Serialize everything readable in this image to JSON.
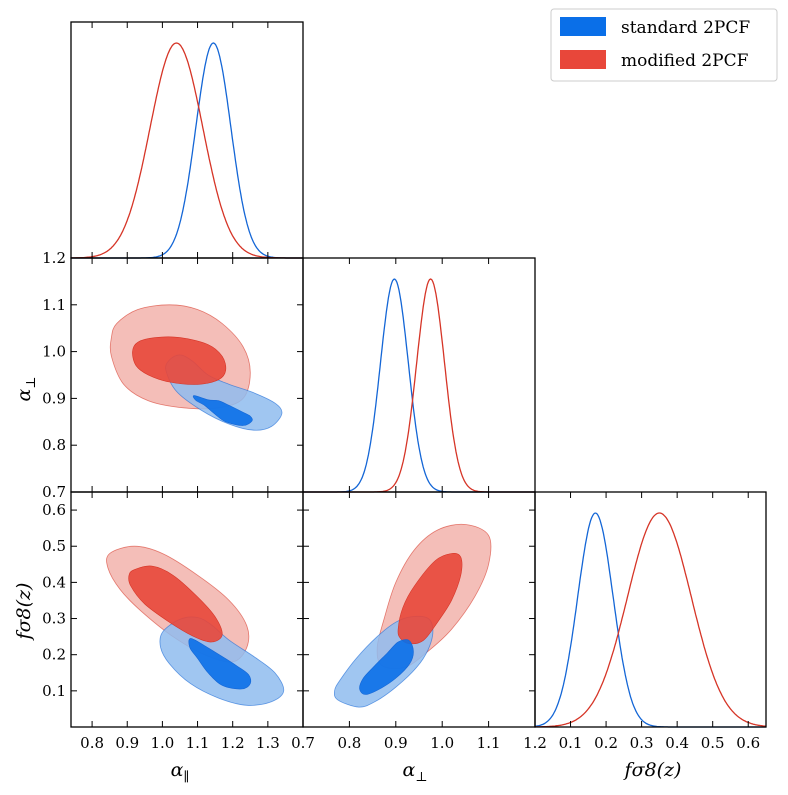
{
  "chart_data": {
    "type": "corner",
    "title": "",
    "series": [
      {
        "name": "standard 2PCF",
        "color_line": "#1466d6",
        "color_1sigma": "#0a6fe8",
        "color_2sigma": "#8fbcef",
        "mean": {
          "alpha_par": 1.145,
          "alpha_perp": 0.897,
          "fs8": 0.17
        },
        "sigma": {
          "alpha_par": 0.05,
          "alpha_perp": 0.03,
          "fs8": 0.05
        },
        "contour_1sigma": {
          "alpha_par_alpha_perp": [
            [
              1.09,
              0.906
            ],
            [
              1.13,
              0.897
            ],
            [
              1.16,
              0.895
            ],
            [
              1.19,
              0.885
            ],
            [
              1.23,
              0.87
            ],
            [
              1.25,
              0.862
            ],
            [
              1.255,
              0.852
            ],
            [
              1.23,
              0.842
            ],
            [
              1.18,
              0.85
            ],
            [
              1.15,
              0.866
            ],
            [
              1.12,
              0.885
            ],
            [
              1.095,
              0.896
            ]
          ],
          "alpha_par_fs8": [
            [
              1.08,
              0.245
            ],
            [
              1.12,
              0.225
            ],
            [
              1.17,
              0.195
            ],
            [
              1.21,
              0.17
            ],
            [
              1.245,
              0.145
            ],
            [
              1.25,
              0.12
            ],
            [
              1.225,
              0.105
            ],
            [
              1.17,
              0.115
            ],
            [
              1.13,
              0.15
            ],
            [
              1.1,
              0.19
            ],
            [
              1.078,
              0.22
            ]
          ],
          "alpha_perp_fs8": [
            [
              0.835,
              0.09
            ],
            [
              0.865,
              0.105
            ],
            [
              0.9,
              0.135
            ],
            [
              0.93,
              0.175
            ],
            [
              0.938,
              0.21
            ],
            [
              0.928,
              0.24
            ],
            [
              0.905,
              0.235
            ],
            [
              0.882,
              0.205
            ],
            [
              0.855,
              0.17
            ],
            [
              0.83,
              0.135
            ],
            [
              0.822,
              0.105
            ]
          ]
        },
        "contour_2sigma": {
          "alpha_par_alpha_perp": [
            [
              1.02,
              0.982
            ],
            [
              1.05,
              0.993
            ],
            [
              1.085,
              0.98
            ],
            [
              1.13,
              0.95
            ],
            [
              1.19,
              0.93
            ],
            [
              1.26,
              0.912
            ],
            [
              1.32,
              0.89
            ],
            [
              1.34,
              0.868
            ],
            [
              1.31,
              0.84
            ],
            [
              1.26,
              0.832
            ],
            [
              1.19,
              0.845
            ],
            [
              1.11,
              0.875
            ],
            [
              1.04,
              0.915
            ],
            [
              1.01,
              0.96
            ]
          ],
          "alpha_par_fs8": [
            [
              1.0,
              0.262
            ],
            [
              1.05,
              0.298
            ],
            [
              1.1,
              0.303
            ],
            [
              1.14,
              0.282
            ],
            [
              1.19,
              0.24
            ],
            [
              1.26,
              0.195
            ],
            [
              1.32,
              0.15
            ],
            [
              1.345,
              0.1
            ],
            [
              1.31,
              0.07
            ],
            [
              1.24,
              0.06
            ],
            [
              1.16,
              0.08
            ],
            [
              1.08,
              0.12
            ],
            [
              1.02,
              0.175
            ],
            [
              0.995,
              0.22
            ]
          ],
          "alpha_perp_fs8": [
            [
              0.775,
              0.075
            ],
            [
              0.82,
              0.055
            ],
            [
              0.855,
              0.07
            ],
            [
              0.9,
              0.11
            ],
            [
              0.945,
              0.165
            ],
            [
              0.97,
              0.215
            ],
            [
              0.98,
              0.265
            ],
            [
              0.97,
              0.3
            ],
            [
              0.935,
              0.305
            ],
            [
              0.9,
              0.29
            ],
            [
              0.86,
              0.25
            ],
            [
              0.815,
              0.19
            ],
            [
              0.78,
              0.13
            ],
            [
              0.768,
              0.1
            ]
          ]
        }
      },
      {
        "name": "modified 2PCF",
        "color_line": "#d63527",
        "color_1sigma": "#e8473a",
        "color_2sigma": "#f2b3ab",
        "mean": {
          "alpha_par": 1.04,
          "alpha_perp": 0.975,
          "fs8": 0.35
        },
        "sigma": {
          "alpha_par": 0.075,
          "alpha_perp": 0.03,
          "fs8": 0.09
        },
        "contour_1sigma": {
          "alpha_par_alpha_perp": [
            [
              0.93,
              1.02
            ],
            [
              0.98,
              1.03
            ],
            [
              1.05,
              1.03
            ],
            [
              1.13,
              1.015
            ],
            [
              1.17,
              0.99
            ],
            [
              1.18,
              0.96
            ],
            [
              1.16,
              0.94
            ],
            [
              1.1,
              0.93
            ],
            [
              1.02,
              0.935
            ],
            [
              0.96,
              0.95
            ],
            [
              0.925,
              0.97
            ],
            [
              0.915,
              1.0
            ]
          ],
          "alpha_par_fs8": [
            [
              0.92,
              0.435
            ],
            [
              0.97,
              0.445
            ],
            [
              1.03,
              0.42
            ],
            [
              1.1,
              0.36
            ],
            [
              1.15,
              0.305
            ],
            [
              1.17,
              0.255
            ],
            [
              1.14,
              0.235
            ],
            [
              1.09,
              0.25
            ],
            [
              1.02,
              0.29
            ],
            [
              0.95,
              0.34
            ],
            [
              0.91,
              0.39
            ],
            [
              0.905,
              0.42
            ]
          ],
          "alpha_perp_fs8": [
            [
              0.905,
              0.27
            ],
            [
              0.915,
              0.33
            ],
            [
              0.94,
              0.39
            ],
            [
              0.985,
              0.46
            ],
            [
              1.02,
              0.48
            ],
            [
              1.04,
              0.47
            ],
            [
              1.04,
              0.42
            ],
            [
              1.02,
              0.35
            ],
            [
              0.99,
              0.29
            ],
            [
              0.96,
              0.24
            ],
            [
              0.93,
              0.23
            ],
            [
              0.91,
              0.245
            ]
          ]
        },
        "contour_2sigma": {
          "alpha_par_alpha_perp": [
            [
              0.87,
              1.06
            ],
            [
              0.93,
              1.09
            ],
            [
              1.02,
              1.1
            ],
            [
              1.1,
              1.09
            ],
            [
              1.17,
              1.06
            ],
            [
              1.23,
              1.01
            ],
            [
              1.25,
              0.955
            ],
            [
              1.23,
              0.9
            ],
            [
              1.16,
              0.88
            ],
            [
              1.06,
              0.88
            ],
            [
              0.96,
              0.895
            ],
            [
              0.89,
              0.93
            ],
            [
              0.855,
              0.99
            ],
            [
              0.855,
              1.03
            ]
          ],
          "alpha_par_fs8": [
            [
              0.85,
              0.48
            ],
            [
              0.92,
              0.5
            ],
            [
              1.0,
              0.48
            ],
            [
              1.1,
              0.42
            ],
            [
              1.19,
              0.35
            ],
            [
              1.24,
              0.28
            ],
            [
              1.24,
              0.22
            ],
            [
              1.2,
              0.18
            ],
            [
              1.12,
              0.2
            ],
            [
              1.03,
              0.25
            ],
            [
              0.94,
              0.32
            ],
            [
              0.88,
              0.38
            ],
            [
              0.845,
              0.44
            ]
          ],
          "alpha_perp_fs8": [
            [
              0.86,
              0.22
            ],
            [
              0.875,
              0.3
            ],
            [
              0.9,
              0.4
            ],
            [
              0.94,
              0.49
            ],
            [
              0.99,
              0.545
            ],
            [
              1.05,
              0.56
            ],
            [
              1.1,
              0.53
            ],
            [
              1.1,
              0.45
            ],
            [
              1.07,
              0.36
            ],
            [
              1.02,
              0.27
            ],
            [
              0.97,
              0.21
            ],
            [
              0.92,
              0.165
            ],
            [
              0.87,
              0.17
            ]
          ]
        }
      }
    ],
    "panels": {
      "x_par": {
        "label": "α∥",
        "range": [
          0.74,
          1.4
        ],
        "ticks": [
          0.8,
          0.9,
          1.0,
          1.1,
          1.2,
          1.3
        ]
      },
      "x_perp": {
        "label": "α⊥",
        "range": [
          0.7,
          1.2
        ],
        "ticks": [
          0.7,
          0.8,
          0.9,
          1.0,
          1.1,
          1.2
        ]
      },
      "x_fs8": {
        "label": "fσ8(z)",
        "range": [
          0.0,
          0.65
        ],
        "ticks": [
          0.1,
          0.2,
          0.3,
          0.4,
          0.5,
          0.6
        ]
      },
      "y_perp": {
        "label": "α⊥",
        "range": [
          0.7,
          1.2
        ],
        "ticks": [
          0.7,
          0.8,
          0.9,
          1.0,
          1.1,
          1.2
        ]
      },
      "y_fs8": {
        "label": "fσ8(z)",
        "range": [
          0.0,
          0.65
        ],
        "ticks": [
          0.1,
          0.2,
          0.3,
          0.4,
          0.5,
          0.6
        ]
      }
    },
    "xlabels": {
      "par_main": "α",
      "par_sub": "∥",
      "perp_main": "α",
      "perp_sub": "⊥",
      "fs8": "fσ8(z)"
    },
    "ylabels": {
      "perp_main": "α",
      "perp_sub": "⊥",
      "fs8": "fσ8(z)"
    },
    "legend": {
      "position": "top-right",
      "entries": [
        "standard 2PCF",
        "modified 2PCF"
      ]
    }
  }
}
